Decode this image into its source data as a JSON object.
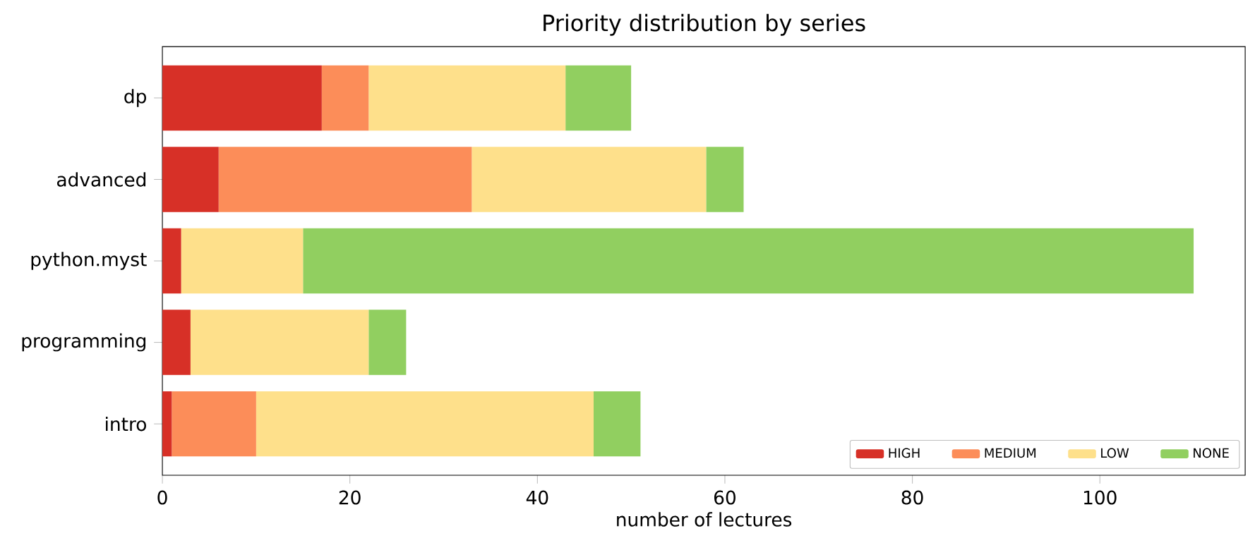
{
  "chart_data": {
    "type": "bar",
    "orientation": "horizontal",
    "stacked": true,
    "title": "Priority distribution by series",
    "xlabel": "number of lectures",
    "categories": [
      "dp",
      "advanced",
      "python.myst",
      "programming",
      "intro"
    ],
    "series": [
      {
        "name": "HIGH",
        "color": "#d73027",
        "values": [
          17,
          6,
          2,
          3,
          1
        ]
      },
      {
        "name": "MEDIUM",
        "color": "#fc8d59",
        "values": [
          5,
          27,
          0,
          0,
          9
        ]
      },
      {
        "name": "LOW",
        "color": "#fee08b",
        "values": [
          21,
          25,
          13,
          19,
          36
        ]
      },
      {
        "name": "NONE",
        "color": "#91cf60",
        "values": [
          7,
          4,
          95,
          4,
          5
        ]
      }
    ],
    "xlim": [
      0,
      115.5
    ],
    "xticks": [
      0,
      20,
      40,
      60,
      80,
      100
    ],
    "legend": "bottom right"
  }
}
